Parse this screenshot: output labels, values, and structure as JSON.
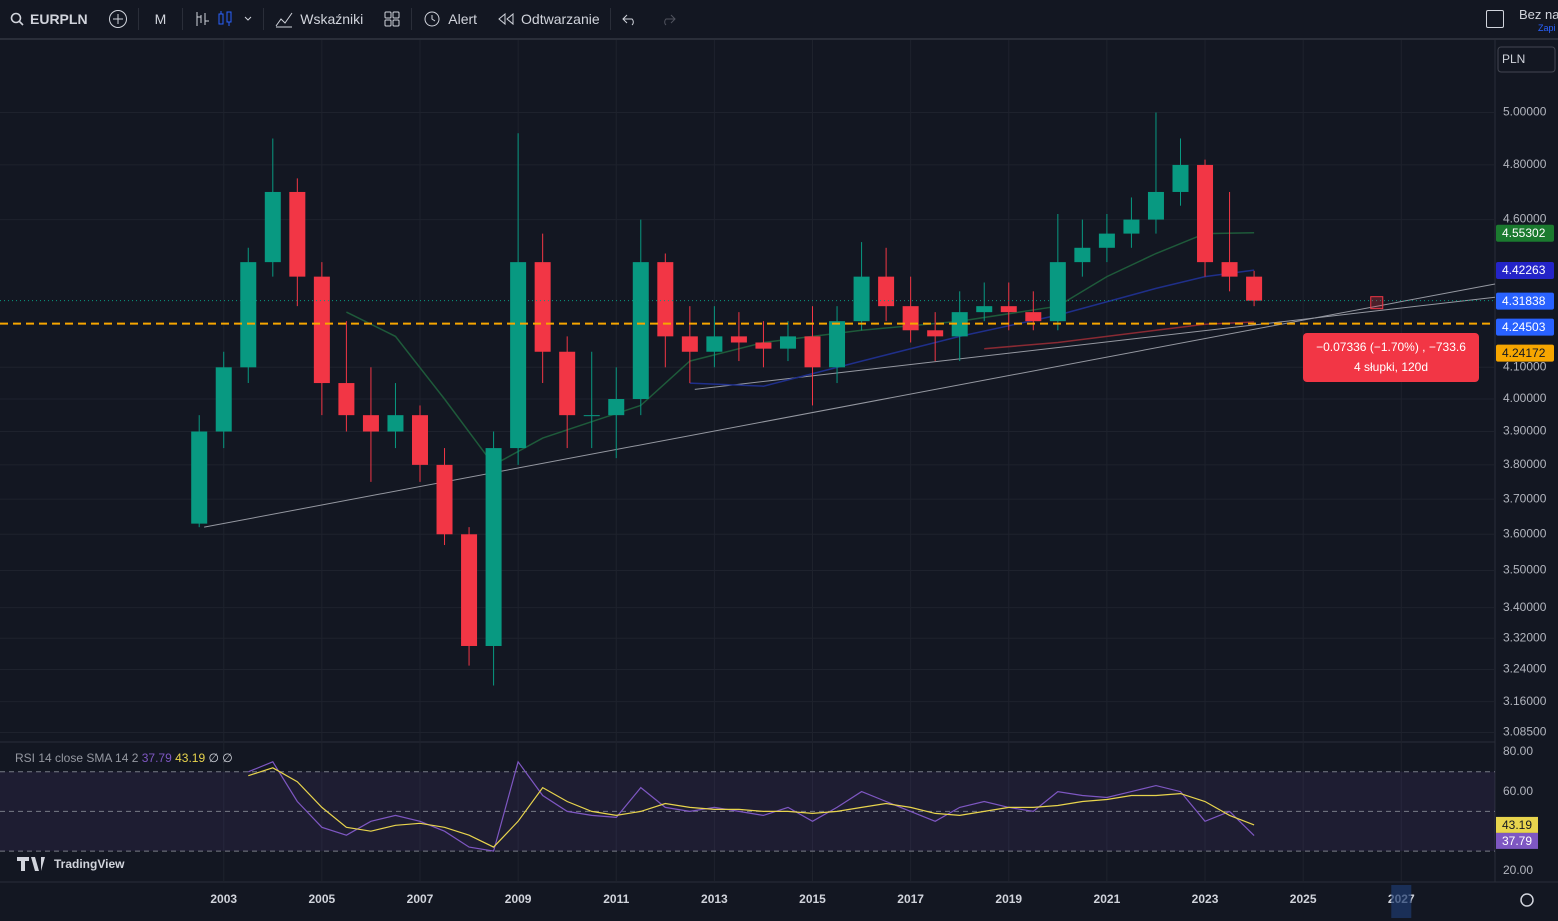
{
  "toolbar": {
    "symbol": "EURPLN",
    "interval": "M",
    "indicators": "Wskaźniki",
    "alert": "Alert",
    "replay": "Odtwarzanie",
    "layout_name": "Bez na",
    "save": "Zapi"
  },
  "watermark": "TradingView",
  "chart_data": {
    "type": "candlestick",
    "log_scale": true,
    "currency": "PLN",
    "up_color": "#089981",
    "down_color": "#f23645",
    "x": [
      2002.5,
      2003,
      2003.5,
      2004,
      2004.5,
      2005,
      2005.5,
      2006,
      2006.5,
      2007,
      2007.5,
      2008,
      2008.5,
      2009,
      2009.5,
      2010,
      2010.5,
      2011,
      2011.5,
      2012,
      2012.5,
      2013,
      2013.5,
      2014,
      2014.5,
      2015,
      2015.5,
      2016,
      2016.5,
      2017,
      2017.5,
      2018,
      2018.5,
      2019,
      2019.5,
      2020,
      2020.5,
      2021,
      2021.5,
      2022,
      2022.5,
      2023,
      2023.5,
      2024
    ],
    "open": [
      3.63,
      3.9,
      4.1,
      4.45,
      4.7,
      4.4,
      4.05,
      3.95,
      3.9,
      3.95,
      3.8,
      3.6,
      3.3,
      3.85,
      4.45,
      4.15,
      3.95,
      3.95,
      4.0,
      4.45,
      4.2,
      4.15,
      4.2,
      4.18,
      4.16,
      4.2,
      4.1,
      4.25,
      4.4,
      4.3,
      4.22,
      4.2,
      4.28,
      4.3,
      4.28,
      4.25,
      4.45,
      4.5,
      4.55,
      4.6,
      4.7,
      4.8,
      4.45,
      4.4
    ],
    "high": [
      3.95,
      4.15,
      4.5,
      4.9,
      4.75,
      4.45,
      4.25,
      4.1,
      4.05,
      3.98,
      3.85,
      3.62,
      3.9,
      4.92,
      4.55,
      4.2,
      4.15,
      4.1,
      4.6,
      4.48,
      4.3,
      4.3,
      4.28,
      4.25,
      4.25,
      4.3,
      4.3,
      4.52,
      4.5,
      4.4,
      4.28,
      4.35,
      4.38,
      4.38,
      4.35,
      4.62,
      4.6,
      4.62,
      4.68,
      5.0,
      4.9,
      4.82,
      4.7,
      4.42
    ],
    "low": [
      3.62,
      3.85,
      4.05,
      4.4,
      4.3,
      3.95,
      3.9,
      3.75,
      3.85,
      3.75,
      3.57,
      3.25,
      3.2,
      3.8,
      4.05,
      3.85,
      3.85,
      3.82,
      3.95,
      4.1,
      4.05,
      4.1,
      4.12,
      4.1,
      4.12,
      3.98,
      4.05,
      4.22,
      4.25,
      4.18,
      4.12,
      4.12,
      4.25,
      4.22,
      4.22,
      4.22,
      4.4,
      4.45,
      4.5,
      4.55,
      4.65,
      4.4,
      4.35,
      4.3
    ],
    "close": [
      3.9,
      4.1,
      4.45,
      4.7,
      4.4,
      4.05,
      3.95,
      3.9,
      3.95,
      3.8,
      3.6,
      3.3,
      3.85,
      4.45,
      4.15,
      3.95,
      3.95,
      4.0,
      4.45,
      4.2,
      4.15,
      4.2,
      4.18,
      4.16,
      4.2,
      4.1,
      4.25,
      4.4,
      4.3,
      4.22,
      4.2,
      4.28,
      4.3,
      4.28,
      4.25,
      4.45,
      4.5,
      4.55,
      4.6,
      4.7,
      4.8,
      4.45,
      4.4,
      4.31838
    ],
    "xlim": [
      1998.44,
      2028.91
    ],
    "xticks": [
      2003,
      2005,
      2007,
      2009,
      2011,
      2013,
      2015,
      2017,
      2019,
      2021,
      2023,
      2025,
      2027
    ],
    "ylim": [
      3.067,
      5.27
    ],
    "yticks": [
      {
        "value": 3.085,
        "label": "3.08500"
      },
      {
        "value": 3.16,
        "label": "3.16000"
      },
      {
        "value": 3.24,
        "label": "3.24000"
      },
      {
        "value": 3.32,
        "label": "3.32000"
      },
      {
        "value": 3.4,
        "label": "3.40000"
      },
      {
        "value": 3.5,
        "label": "3.50000"
      },
      {
        "value": 3.6,
        "label": "3.60000"
      },
      {
        "value": 3.7,
        "label": "3.70000"
      },
      {
        "value": 3.8,
        "label": "3.80000"
      },
      {
        "value": 3.9,
        "label": "3.90000"
      },
      {
        "value": 4.0,
        "label": "4.00000"
      },
      {
        "value": 4.1,
        "label": "4.10000"
      },
      {
        "value": 4.6,
        "label": "4.60000"
      },
      {
        "value": 4.8,
        "label": "4.80000"
      },
      {
        "value": 5.0,
        "label": "5.00000"
      }
    ],
    "overlays": [
      {
        "color": "#1e5a3a",
        "x": [
          2005.5,
          2006.5,
          2007.5,
          2008.5,
          2009.5,
          2010.5,
          2011.5,
          2012.5,
          2014,
          2016,
          2018,
          2020,
          2021,
          2022,
          2023,
          2024
        ],
        "values": [
          4.28,
          4.2,
          4.0,
          3.8,
          3.88,
          3.93,
          3.98,
          4.12,
          4.18,
          4.22,
          4.25,
          4.3,
          4.4,
          4.48,
          4.55,
          4.55302
        ]
      },
      {
        "color": "#1f2f8a",
        "x": [
          2012.5,
          2014,
          2016,
          2018,
          2020,
          2022,
          2023,
          2024
        ],
        "values": [
          4.05,
          4.04,
          4.12,
          4.2,
          4.27,
          4.36,
          4.4,
          4.42263
        ]
      },
      {
        "color": "#8a2a33",
        "x": [
          2018.5,
          2020,
          2022,
          2023,
          2024
        ],
        "values": [
          4.16,
          4.18,
          4.22,
          4.24,
          4.2473
        ]
      }
    ],
    "trendlines": [
      {
        "x": [
          2002.6,
          2028.91
        ],
        "values": [
          3.62,
          4.375
        ]
      },
      {
        "x": [
          2012.6,
          2028.91
        ],
        "values": [
          4.03,
          4.33
        ]
      }
    ],
    "price_lines": [
      {
        "value": 4.24503,
        "color": "#2962ff",
        "style": "none"
      },
      {
        "value": 4.24172,
        "color": "#f7a600",
        "style": "dashed"
      }
    ],
    "measure": {
      "text": "−0.07336 (−1.70%) , −733.6",
      "detail": "4 słupki, 120d"
    }
  },
  "rsi": {
    "type": "line",
    "title": "RSI 14 close SMA 14 2",
    "suffix": "∅ ∅",
    "x": [
      2003.5,
      2004,
      2004.5,
      2005,
      2005.5,
      2006,
      2006.5,
      2007,
      2007.5,
      2008,
      2008.5,
      2009,
      2009.5,
      2010,
      2010.5,
      2011,
      2011.5,
      2012,
      2012.5,
      2013,
      2013.5,
      2014,
      2014.5,
      2015,
      2015.5,
      2016,
      2016.5,
      2017,
      2017.5,
      2018,
      2018.5,
      2019,
      2019.5,
      2020,
      2020.5,
      2021,
      2021.5,
      2022,
      2022.5,
      2023,
      2023.5,
      2024
    ],
    "series": [
      {
        "color": "#7e57c2",
        "values": [
          70,
          75,
          55,
          42,
          38,
          45,
          48,
          45,
          40,
          32,
          30,
          75,
          58,
          50,
          48,
          47,
          62,
          52,
          50,
          52,
          50,
          48,
          52,
          45,
          52,
          60,
          55,
          50,
          45,
          52,
          55,
          52,
          50,
          60,
          58,
          57,
          60,
          63,
          60,
          45,
          50,
          37.79
        ]
      },
      {
        "color": "#e8d44d",
        "values": [
          68,
          72,
          65,
          52,
          42,
          40,
          43,
          44,
          42,
          38,
          32,
          45,
          62,
          55,
          50,
          48,
          50,
          54,
          52,
          51,
          51,
          50,
          50,
          49,
          50,
          52,
          54,
          52,
          49,
          48,
          50,
          52,
          52,
          53,
          55,
          56,
          58,
          58,
          59,
          55,
          48,
          43.19
        ]
      }
    ],
    "ylim": [
      14.4,
      84.5
    ],
    "levels": [
      70,
      50,
      30
    ],
    "yticks": [
      {
        "value": 80,
        "label": "80.00"
      },
      {
        "value": 60,
        "label": "60.00"
      },
      {
        "value": 20,
        "label": "20.00"
      }
    ]
  }
}
